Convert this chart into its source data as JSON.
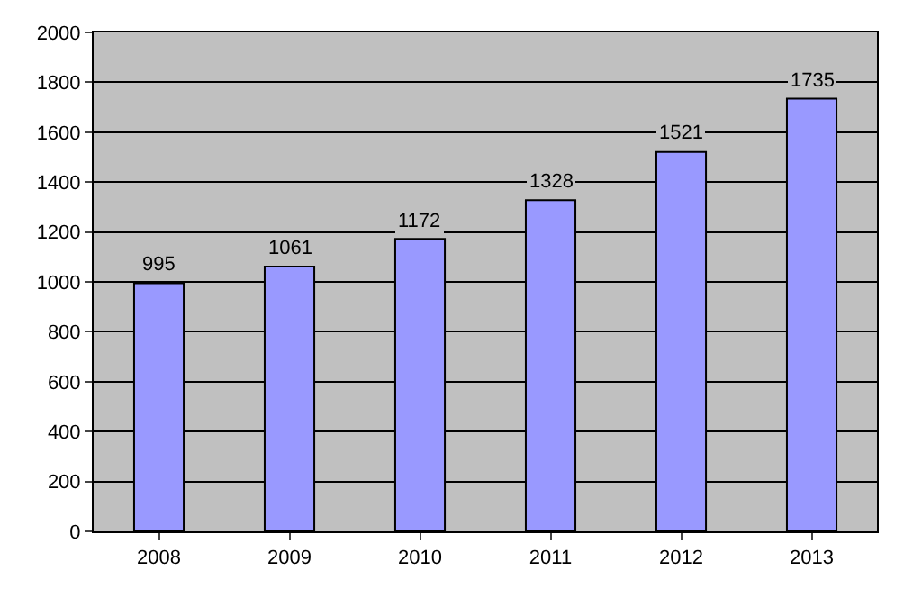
{
  "chart_data": {
    "type": "bar",
    "categories": [
      "2008",
      "2009",
      "2010",
      "2011",
      "2012",
      "2013"
    ],
    "values": [
      995,
      1061,
      1172,
      1328,
      1521,
      1735
    ],
    "color": "#9999ff",
    "ylim": [
      0,
      2000
    ],
    "yticks": [
      0,
      200,
      400,
      600,
      800,
      1000,
      1200,
      1400,
      1600,
      1800,
      2000
    ],
    "grid": "y",
    "data_labels": true
  }
}
